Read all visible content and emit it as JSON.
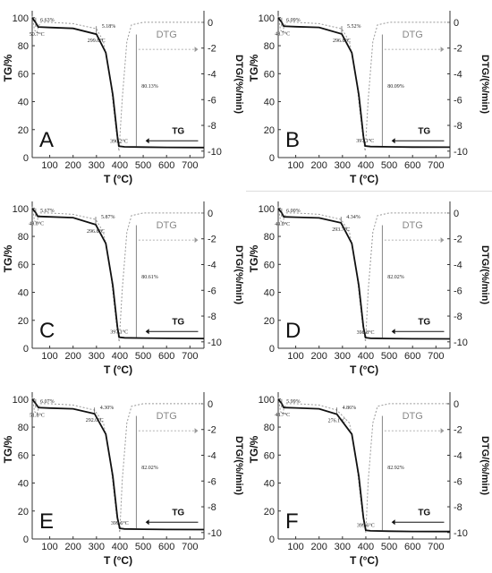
{
  "chart_data": [
    {
      "type": "line",
      "panel": "A",
      "xlabel": "T (°C)",
      "ylabel": "TG/%",
      "y2label": "DTG/(%/min)",
      "xlim": [
        25,
        760
      ],
      "ylim": [
        0,
        105
      ],
      "y2lim": [
        -10.5,
        0.9
      ],
      "xticks": [
        100,
        200,
        300,
        400,
        500,
        600,
        700
      ],
      "yticks": [
        0,
        20,
        40,
        60,
        80,
        100
      ],
      "y2ticks": [
        0,
        -2,
        -4,
        -6,
        -8,
        -10
      ],
      "legend": [
        "DTG",
        "TG"
      ],
      "annotations": {
        "T1": "50.7°C",
        "T2": "299.8°C",
        "T3": "396.2°C",
        "loss1": "6.63%",
        "loss2": "5.18%",
        "loss3": "80.13%"
      },
      "series": [
        {
          "name": "TG",
          "x": [
            25,
            40,
            50.7,
            100,
            200,
            299.8,
            340,
            370,
            380,
            390,
            396.2,
            420,
            500,
            600,
            760
          ],
          "y": [
            100,
            96.5,
            93.4,
            93.0,
            92.4,
            88.2,
            75,
            45,
            30,
            15,
            8.1,
            7.7,
            7.5,
            7.3,
            7.2
          ]
        },
        {
          "name": "DTG",
          "x": [
            25,
            35,
            45,
            50.7,
            60,
            100,
            200,
            299.8,
            330,
            360,
            385,
            396.2,
            410,
            430,
            450,
            500,
            600,
            760
          ],
          "y": [
            0.5,
            -0.6,
            -0.8,
            -0.4,
            0,
            0,
            -0.1,
            -0.5,
            -1.5,
            -4.5,
            -8.5,
            -10.0,
            -6.0,
            -1.5,
            -0.2,
            0,
            0,
            0
          ]
        }
      ]
    },
    {
      "type": "line",
      "panel": "B",
      "xlabel": "T (°C)",
      "ylabel": "TG/%",
      "y2label": "DTG/(%/min)",
      "xlim": [
        25,
        760
      ],
      "ylim": [
        0,
        105
      ],
      "y2lim": [
        -10.5,
        0.9
      ],
      "xticks": [
        100,
        200,
        300,
        400,
        500,
        600,
        700
      ],
      "yticks": [
        0,
        20,
        40,
        60,
        80,
        100
      ],
      "y2ticks": [
        0,
        -2,
        -4,
        -6,
        -8,
        -10
      ],
      "legend": [
        "DTG",
        "TG"
      ],
      "annotations": {
        "T1": "48.7°C",
        "T2": "296.8°C",
        "T3": "397.1°C",
        "loss1": "6.09%",
        "loss2": "5.52%",
        "loss3": "80.09%"
      },
      "series": [
        {
          "name": "TG",
          "x": [
            25,
            40,
            48.7,
            100,
            200,
            296.8,
            340,
            370,
            380,
            390,
            397.1,
            420,
            500,
            600,
            760
          ],
          "y": [
            100,
            96.8,
            93.9,
            93.6,
            93.1,
            88.4,
            75,
            45,
            30,
            15,
            8.3,
            7.9,
            7.7,
            7.5,
            7.4
          ]
        },
        {
          "name": "DTG",
          "x": [
            25,
            35,
            45,
            48.7,
            60,
            100,
            200,
            296.8,
            330,
            360,
            385,
            397.1,
            410,
            430,
            450,
            500,
            600,
            760
          ],
          "y": [
            0.5,
            -0.6,
            -0.8,
            -0.4,
            0,
            0,
            -0.1,
            -0.5,
            -1.5,
            -4.5,
            -8.5,
            -10.0,
            -6.0,
            -1.5,
            -0.2,
            0,
            0,
            0
          ]
        }
      ]
    },
    {
      "type": "line",
      "panel": "C",
      "xlabel": "T (°C)",
      "ylabel": "TG/%",
      "y2label": "DTG/(%/min)",
      "xlim": [
        25,
        760
      ],
      "ylim": [
        0,
        105
      ],
      "y2lim": [
        -10.5,
        0.9
      ],
      "xticks": [
        100,
        200,
        300,
        400,
        500,
        600,
        700
      ],
      "yticks": [
        0,
        20,
        40,
        60,
        80,
        100
      ],
      "y2ticks": [
        0,
        -2,
        -4,
        -6,
        -8,
        -10
      ],
      "legend": [
        "DTG",
        "TG"
      ],
      "annotations": {
        "T1": "49.0°C",
        "T2": "296.8°C",
        "T3": "397.1°C",
        "loss1": "5.67%",
        "loss2": "5.87%",
        "loss3": "80.61%"
      },
      "series": [
        {
          "name": "TG",
          "x": [
            25,
            40,
            49.0,
            100,
            200,
            296.8,
            340,
            370,
            380,
            390,
            397.1,
            420,
            500,
            600,
            760
          ],
          "y": [
            100,
            97.0,
            94.3,
            94.0,
            93.4,
            88.4,
            75,
            45,
            30,
            15,
            7.9,
            7.5,
            7.3,
            7.1,
            7.0
          ]
        },
        {
          "name": "DTG",
          "x": [
            25,
            35,
            45,
            49.0,
            60,
            100,
            200,
            296.8,
            330,
            360,
            385,
            397.1,
            410,
            430,
            450,
            500,
            600,
            760
          ],
          "y": [
            0.5,
            -0.6,
            -0.8,
            -0.4,
            0,
            0,
            -0.1,
            -0.5,
            -1.5,
            -4.5,
            -8.5,
            -10.0,
            -6.0,
            -1.5,
            -0.2,
            0,
            0,
            0
          ]
        }
      ]
    },
    {
      "type": "line",
      "panel": "D",
      "xlabel": "T (°C)",
      "ylabel": "TG/%",
      "y2label": "DTG/(%/min)",
      "xlim": [
        25,
        760
      ],
      "ylim": [
        0,
        105
      ],
      "y2lim": [
        -10.5,
        0.9
      ],
      "xticks": [
        100,
        200,
        300,
        400,
        500,
        600,
        700
      ],
      "yticks": [
        0,
        20,
        40,
        60,
        80,
        100
      ],
      "y2ticks": [
        0,
        -2,
        -4,
        -6,
        -8,
        -10
      ],
      "legend": [
        "DTG",
        "TG"
      ],
      "annotations": {
        "T1": "49.0°C",
        "T2": "293.7°C",
        "T3": "398.8°C",
        "loss1": "6.00%",
        "loss2": "4.34%",
        "loss3": "82.02%"
      },
      "series": [
        {
          "name": "TG",
          "x": [
            25,
            40,
            49.0,
            100,
            200,
            293.7,
            340,
            370,
            380,
            390,
            398.8,
            420,
            500,
            600,
            760
          ],
          "y": [
            100,
            96.9,
            94.0,
            93.7,
            93.2,
            89.7,
            75,
            45,
            30,
            15,
            7.6,
            7.2,
            7.0,
            6.8,
            6.7
          ]
        },
        {
          "name": "DTG",
          "x": [
            25,
            35,
            45,
            49.0,
            60,
            100,
            200,
            293.7,
            330,
            360,
            385,
            398.8,
            410,
            430,
            450,
            500,
            600,
            760
          ],
          "y": [
            0.5,
            -0.6,
            -0.8,
            -0.4,
            0,
            0,
            -0.1,
            -0.5,
            -1.5,
            -4.5,
            -8.5,
            -10.0,
            -6.0,
            -1.5,
            -0.2,
            0,
            0,
            0
          ]
        }
      ]
    },
    {
      "type": "line",
      "panel": "E",
      "xlabel": "T (°C)",
      "ylabel": "TG/%",
      "y2label": "DTG/(%/min)",
      "xlim": [
        25,
        760
      ],
      "ylim": [
        0,
        105
      ],
      "y2lim": [
        -10.5,
        0.9
      ],
      "xticks": [
        100,
        200,
        300,
        400,
        500,
        600,
        700
      ],
      "yticks": [
        0,
        20,
        40,
        60,
        80,
        100
      ],
      "y2ticks": [
        0,
        -2,
        -4,
        -6,
        -8,
        -10
      ],
      "legend": [
        "DTG",
        "TG"
      ],
      "annotations": {
        "T1": "51.8°C",
        "T2": "292.0°C",
        "T3": "399.6°C",
        "loss1": "6.07%",
        "loss2": "4.30%",
        "loss3": "82.02%"
      },
      "series": [
        {
          "name": "TG",
          "x": [
            25,
            40,
            51.8,
            100,
            200,
            292.0,
            340,
            370,
            380,
            390,
            399.6,
            420,
            500,
            600,
            760
          ],
          "y": [
            100,
            96.8,
            93.9,
            93.6,
            93.1,
            89.6,
            75,
            45,
            30,
            15,
            7.6,
            7.2,
            7.0,
            6.8,
            6.7
          ]
        },
        {
          "name": "DTG",
          "x": [
            25,
            35,
            45,
            51.8,
            60,
            100,
            200,
            292.0,
            330,
            360,
            385,
            399.6,
            410,
            430,
            450,
            500,
            600,
            760
          ],
          "y": [
            0.5,
            -0.6,
            -0.8,
            -0.4,
            0,
            0,
            -0.1,
            -0.5,
            -1.5,
            -4.5,
            -8.5,
            -10.0,
            -6.0,
            -1.5,
            -0.2,
            0,
            0,
            0
          ]
        }
      ]
    },
    {
      "type": "line",
      "panel": "F",
      "xlabel": "T (°C)",
      "ylabel": "TG/%",
      "y2label": "DTG/(%/min)",
      "xlim": [
        25,
        760
      ],
      "ylim": [
        0,
        105
      ],
      "y2lim": [
        -10.5,
        0.9
      ],
      "xticks": [
        100,
        200,
        300,
        400,
        500,
        600,
        700
      ],
      "yticks": [
        0,
        20,
        40,
        60,
        80,
        100
      ],
      "y2ticks": [
        0,
        -2,
        -4,
        -6,
        -8,
        -10
      ],
      "legend": [
        "DTG",
        "TG"
      ],
      "annotations": {
        "T1": "48.7°C",
        "T2": "276.1°C",
        "T3": "399.6°C",
        "loss1": "5.99%",
        "loss2": "4.86%",
        "loss3": "82.92%"
      },
      "series": [
        {
          "name": "TG",
          "x": [
            25,
            40,
            48.7,
            100,
            200,
            276.1,
            340,
            370,
            380,
            390,
            399.6,
            420,
            500,
            600,
            760
          ],
          "y": [
            100,
            96.9,
            94.0,
            93.7,
            93.1,
            89.2,
            75,
            45,
            30,
            15,
            6.2,
            5.8,
            5.6,
            5.4,
            5.3
          ]
        },
        {
          "name": "DTG",
          "x": [
            25,
            35,
            45,
            48.7,
            60,
            100,
            200,
            276.1,
            330,
            360,
            385,
            399.6,
            410,
            430,
            450,
            500,
            600,
            760
          ],
          "y": [
            0.5,
            -0.6,
            -0.8,
            -0.4,
            0,
            0,
            -0.1,
            -0.5,
            -1.5,
            -4.5,
            -8.5,
            -10.0,
            -6.0,
            -1.5,
            -0.2,
            0,
            0,
            0
          ]
        }
      ]
    }
  ]
}
